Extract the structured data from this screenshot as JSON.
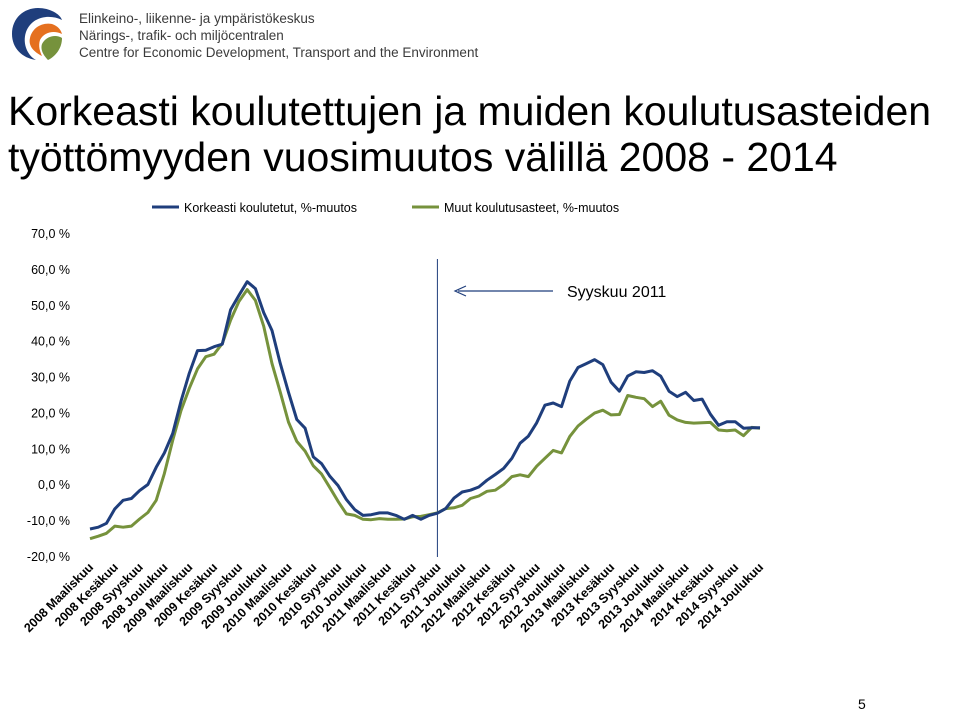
{
  "header": {
    "org_lines": [
      "Elinkeino-, liikenne- ja ympäristökeskus",
      "Närings-, trafik- och miljöcentralen",
      "Centre for Economic Development, Transport and the Environment"
    ]
  },
  "slide": {
    "title_line1": "Korkeasti koulutettujen ja muiden koulutusasteiden",
    "title_line2": "työttömyyden vuosimuutos välillä 2008 - 2014",
    "page_number": "5"
  },
  "colors": {
    "series1": "#1f3e7c",
    "series2": "#76923c",
    "marker_line": "#1f3e7c",
    "logo_blue": "#1f3e7c",
    "logo_orange": "#e5701f",
    "logo_green": "#76923c"
  },
  "chart_data": {
    "type": "line",
    "title": "",
    "xlabel": "",
    "ylabel": "",
    "ylim": [
      -20,
      70
    ],
    "y_ticks": [
      70,
      60,
      50,
      40,
      30,
      20,
      10,
      0,
      -10,
      -20
    ],
    "y_tick_labels": [
      "70,0 %",
      "60,0 %",
      "50,0 %",
      "40,0 %",
      "30,0 %",
      "20,0 %",
      "10,0 %",
      "0,0 %",
      "-10,0 %",
      "-20,0 %"
    ],
    "grid": false,
    "legend_position": "top",
    "x": [
      "2008 Maaliskuu",
      "2008 Huhtikuu",
      "2008 Toukokuu",
      "2008 Kesäkuu",
      "2008 Heinäkuu",
      "2008 Elokuu",
      "2008 Syyskuu",
      "2008 Lokakuu",
      "2008 Marraskuu",
      "2008 Joulukuu",
      "2009 Tammikuu",
      "2009 Helmikuu",
      "2009 Maaliskuu",
      "2009 Huhtikuu",
      "2009 Toukokuu",
      "2009 Kesäkuu",
      "2009 Heinäkuu",
      "2009 Elokuu",
      "2009 Syyskuu",
      "2009 Lokakuu",
      "2009 Marraskuu",
      "2009 Joulukuu",
      "2010 Tammikuu",
      "2010 Helmikuu",
      "2010 Maaliskuu",
      "2010 Huhtikuu",
      "2010 Toukokuu",
      "2010 Kesäkuu",
      "2010 Heinäkuu",
      "2010 Elokuu",
      "2010 Syyskuu",
      "2010 Lokakuu",
      "2010 Marraskuu",
      "2010 Joulukuu",
      "2011 Tammikuu",
      "2011 Helmikuu",
      "2011 Maaliskuu",
      "2011 Huhtikuu",
      "2011 Toukokuu",
      "2011 Kesäkuu",
      "2011 Heinäkuu",
      "2011 Elokuu",
      "2011 Syyskuu",
      "2011 Lokakuu",
      "2011 Marraskuu",
      "2011 Joulukuu",
      "2012 Tammikuu",
      "2012 Helmikuu",
      "2012 Maaliskuu",
      "2012 Huhtikuu",
      "2012 Toukokuu",
      "2012 Kesäkuu",
      "2012 Heinäkuu",
      "2012 Elokuu",
      "2012 Syyskuu",
      "2012 Lokakuu",
      "2012 Marraskuu",
      "2012 Joulukuu",
      "2013 Tammikuu",
      "2013 Helmikuu",
      "2013 Maaliskuu",
      "2013 Huhtikuu",
      "2013 Toukokuu",
      "2013 Kesäkuu",
      "2013 Heinäkuu",
      "2013 Elokuu",
      "2013 Syyskuu",
      "2013 Lokakuu",
      "2013 Marraskuu",
      "2013 Joulukuu",
      "2014 Tammikuu",
      "2014 Helmikuu",
      "2014 Maaliskuu",
      "2014 Huhtikuu",
      "2014 Toukokuu",
      "2014 Kesäkuu",
      "2014 Heinäkuu",
      "2014 Elokuu",
      "2014 Syyskuu",
      "2014 Lokakuu",
      "2014 Marraskuu",
      "2014 Joulukuu"
    ],
    "x_tick_labels": [
      "2008 Maaliskuu",
      "2008 Kesäkuu",
      "2008 Syyskuu",
      "2008 Joulukuu",
      "2009 Maaliskuu",
      "2009 Kesäkuu",
      "2009 Syyskuu",
      "2009 Joulukuu",
      "2010 Maaliskuu",
      "2010 Kesäkuu",
      "2010 Syyskuu",
      "2010 Joulukuu",
      "2011 Maaliskuu",
      "2011 Kesäkuu",
      "2011 Syyskuu",
      "2011 Joulukuu",
      "2012 Maaliskuu",
      "2012 Kesäkuu",
      "2012 Syyskuu",
      "2012 Joulukuu",
      "2013 Maaliskuu",
      "2013 Kesäkuu",
      "2013 Syyskuu",
      "2013 Joulukuu",
      "2014 Maaliskuu",
      "2014 Kesäkuu",
      "2014 Syyskuu",
      "2014 Joulukuu"
    ],
    "x_tick_step": 3,
    "series": [
      {
        "name": "Korkeasti koulutetut, %-muutos",
        "values": [
          -12.2,
          -11.7,
          -10.6,
          -6.6,
          -4.2,
          -3.7,
          -1.5,
          0.2,
          5.0,
          9.0,
          14.4,
          23.4,
          31.2,
          37.5,
          37.6,
          38.6,
          39.3,
          48.9,
          52.9,
          56.7,
          54.8,
          48.1,
          43.1,
          34.0,
          25.9,
          18.3,
          15.9,
          7.9,
          6.0,
          2.5,
          -0.1,
          -4.0,
          -6.8,
          -8.4,
          -8.2,
          -7.7,
          -7.7,
          -8.4,
          -9.5,
          -8.4,
          -9.5,
          -8.4,
          -7.8,
          -6.5,
          -3.6,
          -1.9,
          -1.4,
          -0.5,
          1.4,
          3.0,
          4.7,
          7.5,
          11.7,
          13.7,
          17.4,
          22.3,
          22.9,
          21.9,
          29.0,
          32.8,
          33.9,
          35.0,
          33.6,
          28.7,
          26.2,
          30.4,
          31.6,
          31.4,
          31.9,
          30.4,
          26.2,
          24.7,
          25.9,
          23.6,
          24.0,
          19.8,
          16.7,
          17.7,
          17.7,
          15.9,
          16.0,
          16.0
        ]
      },
      {
        "name": "Muut koulutusasteet, %-muutos",
        "values": [
          -14.9,
          -14.2,
          -13.4,
          -11.4,
          -11.7,
          -11.4,
          -9.4,
          -7.6,
          -4.2,
          3.3,
          12.5,
          20.8,
          27.0,
          32.4,
          35.8,
          36.5,
          39.5,
          46.0,
          51.2,
          54.5,
          51.5,
          44.3,
          33.9,
          26.0,
          17.6,
          12.2,
          9.5,
          5.4,
          3.1,
          -0.7,
          -4.5,
          -8.0,
          -8.4,
          -9.5,
          -9.6,
          -9.3,
          -9.5,
          -9.5,
          -9.4,
          -8.8,
          -8.7,
          -8.2,
          -7.7,
          -6.5,
          -6.3,
          -5.6,
          -3.7,
          -3.0,
          -1.7,
          -1.4,
          0.2,
          2.4,
          2.9,
          2.4,
          5.3,
          7.5,
          9.7,
          9.0,
          13.6,
          16.5,
          18.4,
          20.1,
          20.9,
          19.6,
          19.7,
          25.0,
          24.5,
          24.1,
          21.9,
          23.4,
          19.5,
          18.2,
          17.5,
          17.3,
          17.4,
          17.5,
          15.4,
          15.2,
          15.4,
          13.8,
          16.1,
          15.9
        ]
      }
    ],
    "annotations": [
      {
        "text": "Syyskuu 2011",
        "at_x": "2011 Syyskuu"
      }
    ]
  }
}
